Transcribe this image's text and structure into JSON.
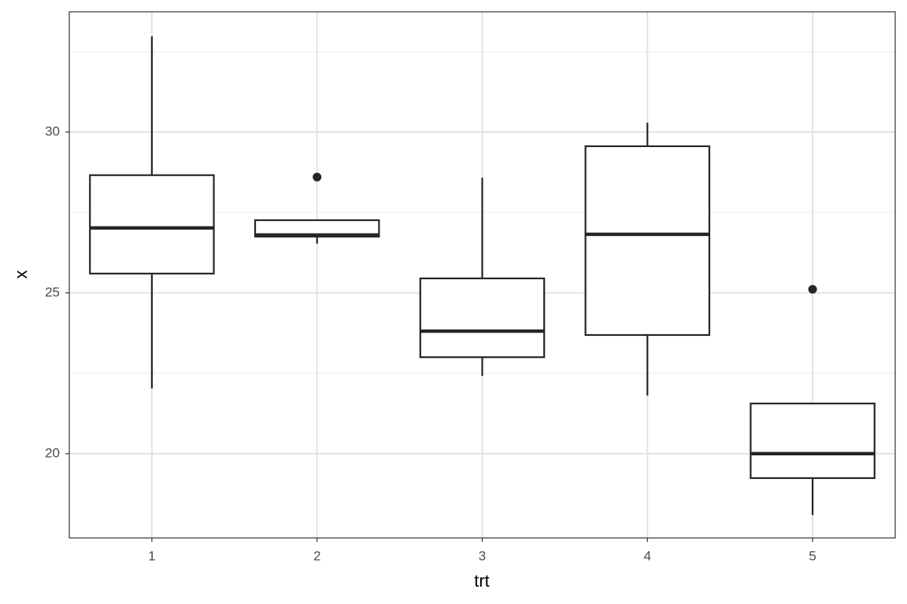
{
  "chart_data": {
    "type": "box",
    "x_label": "trt",
    "y_label": "x",
    "categories": [
      "1",
      "2",
      "3",
      "4",
      "5"
    ],
    "min": [
      22.03,
      26.53,
      22.42,
      21.81,
      18.09
    ],
    "q1": [
      25.6,
      26.75,
      23.0,
      23.69,
      19.24
    ],
    "median": [
      27.02,
      26.8,
      23.81,
      26.82,
      20.0
    ],
    "q3": [
      28.66,
      27.26,
      25.45,
      29.56,
      21.56
    ],
    "max": [
      32.98,
      27.26,
      28.58,
      30.29,
      21.56
    ],
    "outliers": [
      [],
      [
        28.6
      ],
      [],
      [],
      [
        25.11
      ]
    ],
    "color": "#262626",
    "ylim": [
      17.38,
      33.74
    ],
    "yticks": [
      20,
      25,
      30
    ],
    "yminorticks": [
      22.5,
      27.5,
      32.5
    ],
    "grid": true
  }
}
